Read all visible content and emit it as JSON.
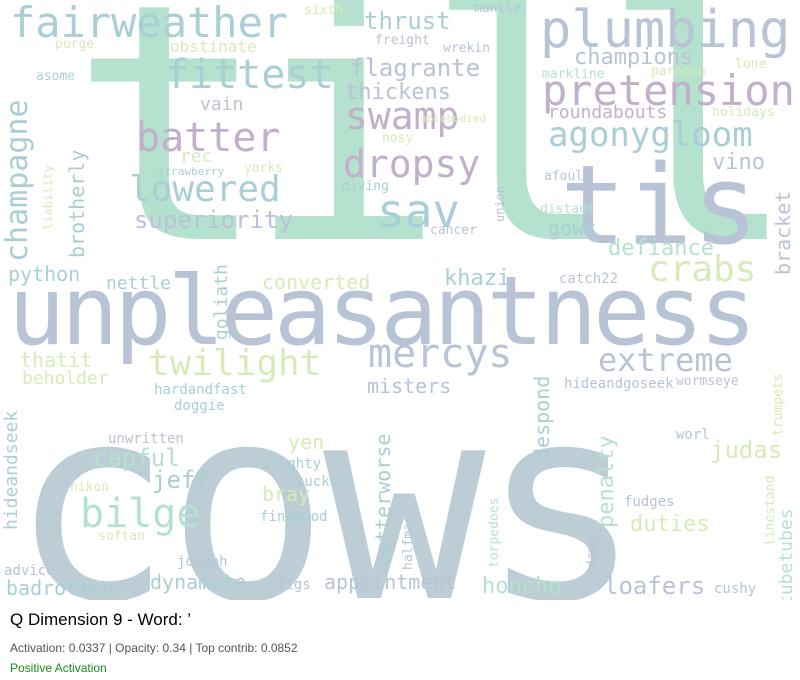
{
  "colors": {
    "mint": "#b5e2cf",
    "blue": "#b8c3d6",
    "mauve": "#c2b0cb",
    "teal": "#a9cfd4",
    "lime": "#d7ebb8",
    "slate": "#bccdd6",
    "steel": "#a8b8c6"
  },
  "caption": {
    "title": "Q Dimension 9 - Word: ’",
    "stats": "Activation: 0.0337 | Opacity: 0.34 | Top contrib: 0.0852",
    "sign": "Positive Activation"
  },
  "words": [
    "cows",
    "till",
    "unpleasantness",
    "tis",
    "plumbing",
    "fairweather",
    "pretension",
    "fittest",
    "mercys",
    "batter",
    "swamp",
    "dropsy",
    "sav",
    "champagne",
    "lowered",
    "agonygloom",
    "crabs",
    "twilight",
    "extreme",
    "bilge",
    "capful",
    "jeff",
    "thrust",
    "flagrante",
    "thickens",
    "champions",
    "superiority",
    "roundabouts",
    "vino",
    "defiance",
    "bracket",
    "gowk",
    "brotherly",
    "rec",
    "vain",
    "obstinate",
    "python",
    "nettle",
    "converted",
    "khazi",
    "thatit",
    "beholder",
    "misters",
    "goliath",
    "hideandseek",
    "penalty",
    "judas",
    "duties",
    "tubetubes",
    "despond",
    "betterworse",
    "yen",
    "bray",
    "dynamite",
    "appointment",
    "honcho",
    "loafers",
    "badrotten",
    "mantle",
    "freight",
    "wrekin",
    "sixth",
    "purge",
    "asome",
    "markline",
    "paragon",
    "lone",
    "holidays",
    "nosy",
    "ablebodied",
    "yorks",
    "strawberry",
    "diving",
    "union",
    "afoul",
    "distant",
    "cancer",
    "liability",
    "catch22",
    "hardandfast",
    "doggie",
    "hideandgoseek",
    "wormseye",
    "trumpets",
    "unwritten",
    "worl",
    "blighty",
    "tucker",
    "finegood",
    "nikon",
    "softan",
    "fudges",
    "linestand",
    "torpedoes",
    "halfmast",
    "damp",
    "joseph",
    "advice",
    "figs",
    "cushy"
  ]
}
